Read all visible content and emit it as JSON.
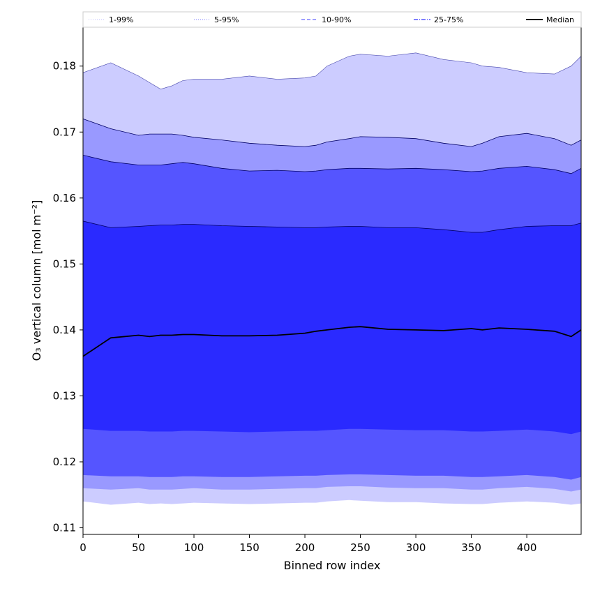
{
  "chart_data": {
    "type": "area",
    "xlabel": "Binned row index",
    "ylabel": "O₃ vertical column [mol m⁻²]",
    "xlim": [
      0,
      449
    ],
    "ylim": [
      0.109,
      0.186
    ],
    "x_ticks": [
      0,
      50,
      100,
      150,
      200,
      250,
      300,
      350,
      400
    ],
    "y_ticks": [
      0.11,
      0.12,
      0.13,
      0.14,
      0.15,
      0.16,
      0.17,
      0.18
    ],
    "legend_position": "top (above plot, full width, 5 columns)",
    "colors": {
      "band_1_99": "#ccccff",
      "band_5_95": "#9999ff",
      "band_10_90": "#5555ff",
      "band_25_75": "#2a2aff",
      "median": "#000000"
    },
    "legend": [
      {
        "label": "1-99%",
        "style": "dotted",
        "color": "#ccccff"
      },
      {
        "label": "5-95%",
        "style": "dotted",
        "color": "#9999ff"
      },
      {
        "label": "10-90%",
        "style": "dashed",
        "color": "#6666ff"
      },
      {
        "label": "25-75%",
        "style": "dashdot",
        "color": "#3333ff"
      },
      {
        "label": "Median",
        "style": "solid",
        "color": "#000000"
      }
    ],
    "x": [
      0,
      25,
      50,
      60,
      70,
      80,
      90,
      100,
      125,
      150,
      175,
      200,
      210,
      220,
      240,
      250,
      275,
      300,
      325,
      350,
      360,
      375,
      400,
      425,
      440,
      449
    ],
    "series": [
      {
        "name": "1-99%",
        "lower": [
          0.114,
          0.1135,
          0.1138,
          0.1136,
          0.1137,
          0.1136,
          0.1137,
          0.1138,
          0.1137,
          0.1136,
          0.1137,
          0.1138,
          0.1138,
          0.114,
          0.1142,
          0.1141,
          0.1139,
          0.1139,
          0.1137,
          0.1136,
          0.1136,
          0.1138,
          0.114,
          0.1138,
          0.1135,
          0.1137
        ],
        "upper": [
          0.179,
          0.1805,
          0.1785,
          0.1775,
          0.1765,
          0.177,
          0.1778,
          0.178,
          0.178,
          0.1785,
          0.178,
          0.1782,
          0.1785,
          0.18,
          0.1815,
          0.1818,
          0.1815,
          0.182,
          0.181,
          0.1805,
          0.18,
          0.1798,
          0.179,
          0.1788,
          0.18,
          0.1815
        ]
      },
      {
        "name": "5-95%",
        "lower": [
          0.116,
          0.1158,
          0.116,
          0.1158,
          0.1158,
          0.1158,
          0.1159,
          0.116,
          0.1158,
          0.1158,
          0.1159,
          0.116,
          0.116,
          0.1162,
          0.1163,
          0.1163,
          0.1161,
          0.116,
          0.116,
          0.1158,
          0.1158,
          0.116,
          0.1162,
          0.1159,
          0.1155,
          0.1158
        ],
        "upper": [
          0.172,
          0.1705,
          0.1695,
          0.1697,
          0.1697,
          0.1697,
          0.1695,
          0.1692,
          0.1688,
          0.1683,
          0.168,
          0.1678,
          0.168,
          0.1685,
          0.169,
          0.1693,
          0.1692,
          0.169,
          0.1683,
          0.1678,
          0.1683,
          0.1693,
          0.1698,
          0.169,
          0.168,
          0.1688
        ]
      },
      {
        "name": "10-90%",
        "lower": [
          0.118,
          0.1178,
          0.1178,
          0.1177,
          0.1177,
          0.1177,
          0.1178,
          0.1178,
          0.1177,
          0.1177,
          0.1178,
          0.1179,
          0.1179,
          0.118,
          0.1181,
          0.1181,
          0.118,
          0.1179,
          0.1179,
          0.1177,
          0.1177,
          0.1178,
          0.118,
          0.1177,
          0.1173,
          0.1177
        ],
        "upper": [
          0.1665,
          0.1655,
          0.165,
          0.165,
          0.165,
          0.1652,
          0.1654,
          0.1652,
          0.1645,
          0.1641,
          0.1642,
          0.164,
          0.1641,
          0.1643,
          0.1645,
          0.1645,
          0.1644,
          0.1645,
          0.1643,
          0.164,
          0.1641,
          0.1645,
          0.1648,
          0.1643,
          0.1637,
          0.1645
        ]
      },
      {
        "name": "25-75%",
        "lower": [
          0.125,
          0.1247,
          0.1247,
          0.1246,
          0.1246,
          0.1246,
          0.1247,
          0.1247,
          0.1246,
          0.1245,
          0.1246,
          0.1247,
          0.1247,
          0.1248,
          0.125,
          0.125,
          0.1249,
          0.1248,
          0.1248,
          0.1246,
          0.1246,
          0.1247,
          0.1249,
          0.1246,
          0.1242,
          0.1246
        ],
        "upper": [
          0.1565,
          0.1555,
          0.1557,
          0.1558,
          0.1559,
          0.1559,
          0.156,
          0.156,
          0.1558,
          0.1557,
          0.1556,
          0.1555,
          0.1555,
          0.1556,
          0.1557,
          0.1557,
          0.1555,
          0.1555,
          0.1552,
          0.1548,
          0.1548,
          0.1552,
          0.1557,
          0.1558,
          0.1558,
          0.1562
        ]
      },
      {
        "name": "Median",
        "values": [
          0.136,
          0.1388,
          0.1392,
          0.139,
          0.1392,
          0.1392,
          0.1393,
          0.1393,
          0.1391,
          0.1391,
          0.1392,
          0.1395,
          0.1398,
          0.14,
          0.1404,
          0.1405,
          0.1401,
          0.14,
          0.1399,
          0.1402,
          0.14,
          0.1403,
          0.1401,
          0.1398,
          0.139,
          0.14
        ]
      }
    ]
  }
}
